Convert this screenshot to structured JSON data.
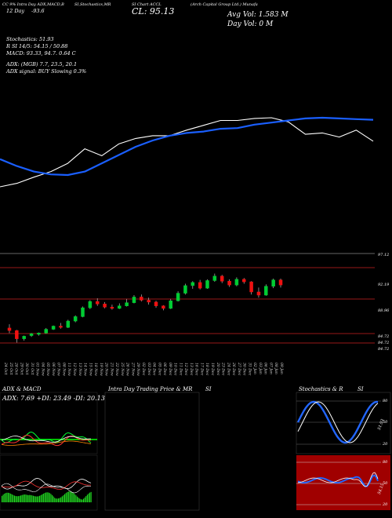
{
  "header": {
    "line1": "CC 9% Intra Day ADX,MACD,B",
    "line1b": "SI,Stochastics,MR",
    "line1c": "SI Chart ACCL",
    "line1d": "(Arch Capital Group Ltd.) Munafa",
    "line2a": "12 Day",
    "line2b": "-93.6",
    "cl": "CL: 95.13",
    "avg_vol": "Avg Vol: 1.583 M",
    "day_vol": "Day Vol: 0   M",
    "stoch": "Stochastics: 51.93",
    "rsi": "R            SI 14/5: 54.15 / 50.88",
    "macd": "MACD: 93.33, 94.7. 0.64 C",
    "adx": "ADX:                    (MGB) 7.7, 23.5, 20.1",
    "adx_signal": "ADX   signal:              BUY Slowing 0.3%"
  },
  "price_labels": [
    "97.12",
    "92.19",
    "88.96",
    "84.72",
    "84.72",
    "84.72"
  ],
  "date_labels": [
    "24 Oct",
    "25 Oct",
    "28 Oct",
    "29 Oct",
    "30 Oct",
    "31 Oct",
    "01 Nov",
    "04 Nov",
    "05 Nov",
    "06 Nov",
    "07 Nov",
    "08 Nov",
    "11 Nov",
    "12 Nov",
    "13 Nov",
    "14 Nov",
    "15 Nov",
    "18 Nov",
    "19 Nov",
    "20 Nov",
    "21 Nov",
    "22 Nov",
    "25 Nov",
    "26 Nov",
    "27 Nov",
    "29 Nov",
    "02 Dec",
    "03 Dec",
    "04 Dec",
    "05 Dec",
    "06 Dec",
    "09 Dec",
    "10 Dec",
    "11 Dec",
    "12 Dec",
    "13 Dec",
    "16 Dec",
    "17 Dec",
    "18 Dec",
    "19 Dec",
    "20 Dec",
    "23 Dec",
    "24 Dec",
    "26 Dec",
    "27 Dec",
    "30 Dec",
    "31 Dec",
    "02 Jan",
    "03 Jan",
    "06 Jan",
    "07 Jan",
    "08 Jan",
    "09 Jan"
  ],
  "panels": {
    "adx_title": "ADX  & MACD",
    "adx_values": "ADX: 7.69  +DI: 23.49  -DI: 20.13",
    "intra_title": "Intra Day Trading Price  & MR",
    "intra_si": "SI",
    "stoch_title": "Stochastics & R",
    "stoch_si": "SI",
    "stoch_scale": [
      "80",
      "50",
      "20"
    ],
    "rsi_scale": [
      "80",
      "50",
      "20"
    ],
    "stoch_val": "51.93",
    "rsi_val": "54.15"
  },
  "colors": {
    "background": "#000000",
    "price_line": "#ffffff",
    "ma_line": "#1a5fff",
    "up_candle": "#00cc33",
    "down_candle": "#ee1111",
    "support_line": "#cc2222",
    "rsi_band": "#aa0000"
  },
  "chart_data": {
    "type": "line",
    "title": "",
    "series": [
      {
        "name": "",
        "values": [
          0.0,
          0.05,
          0.14,
          0.22,
          0.34,
          0.55,
          0.45,
          0.62,
          0.7,
          0.74,
          0.74,
          0.82,
          0.89,
          0.96,
          0.96,
          0.99,
          1.0,
          0.94,
          0.76,
          0.78,
          0.72,
          0.82,
          0.66
        ]
      },
      {
        "name": "",
        "values": [
          0.4,
          0.3,
          0.22,
          0.18,
          0.17,
          0.22,
          0.34,
          0.46,
          0.58,
          0.67,
          0.74,
          0.78,
          0.8,
          0.84,
          0.85,
          0.9,
          0.93,
          0.96,
          0.99,
          1.0,
          0.99,
          0.98,
          0.97
        ]
      }
    ],
    "candles": [
      {
        "o": 86.6,
        "c": 86.2,
        "h": 87.2,
        "l": 85.8
      },
      {
        "o": 86.2,
        "c": 84.9,
        "h": 86.3,
        "l": 84.3
      },
      {
        "o": 84.9,
        "c": 85.3,
        "h": 85.4,
        "l": 84.6
      },
      {
        "o": 85.4,
        "c": 85.7,
        "h": 85.8,
        "l": 85.2
      },
      {
        "o": 85.6,
        "c": 85.8,
        "h": 85.9,
        "l": 85.4
      },
      {
        "o": 85.8,
        "c": 86.4,
        "h": 86.6,
        "l": 85.7
      },
      {
        "o": 86.4,
        "c": 86.9,
        "h": 87.0,
        "l": 86.3
      },
      {
        "o": 86.9,
        "c": 86.7,
        "h": 87.4,
        "l": 86.5
      },
      {
        "o": 86.7,
        "c": 87.7,
        "h": 87.9,
        "l": 86.6
      },
      {
        "o": 87.7,
        "c": 88.4,
        "h": 88.6,
        "l": 87.5
      },
      {
        "o": 88.4,
        "c": 89.8,
        "h": 90.0,
        "l": 88.3
      },
      {
        "o": 89.8,
        "c": 90.8,
        "h": 91.0,
        "l": 89.6
      },
      {
        "o": 90.8,
        "c": 90.4,
        "h": 91.3,
        "l": 90.1
      },
      {
        "o": 90.4,
        "c": 89.9,
        "h": 90.7,
        "l": 89.7
      },
      {
        "o": 89.9,
        "c": 89.7,
        "h": 90.3,
        "l": 89.5
      },
      {
        "o": 89.7,
        "c": 90.1,
        "h": 90.5,
        "l": 89.6
      },
      {
        "o": 90.1,
        "c": 90.6,
        "h": 91.2,
        "l": 90.0
      },
      {
        "o": 90.6,
        "c": 91.5,
        "h": 91.8,
        "l": 90.5
      },
      {
        "o": 91.5,
        "c": 91.0,
        "h": 91.9,
        "l": 90.8
      },
      {
        "o": 91.0,
        "c": 90.7,
        "h": 91.4,
        "l": 90.3
      },
      {
        "o": 90.7,
        "c": 90.1,
        "h": 90.9,
        "l": 89.8
      },
      {
        "o": 90.1,
        "c": 89.7,
        "h": 90.2,
        "l": 89.4
      },
      {
        "o": 89.7,
        "c": 90.9,
        "h": 91.2,
        "l": 89.6
      },
      {
        "o": 90.9,
        "c": 92.1,
        "h": 92.4,
        "l": 90.8
      },
      {
        "o": 92.1,
        "c": 93.3,
        "h": 93.6,
        "l": 91.9
      },
      {
        "o": 93.3,
        "c": 93.8,
        "h": 94.0,
        "l": 92.8
      },
      {
        "o": 93.8,
        "c": 92.9,
        "h": 94.2,
        "l": 92.7
      },
      {
        "o": 92.9,
        "c": 94.1,
        "h": 94.3,
        "l": 92.8
      },
      {
        "o": 94.1,
        "c": 94.8,
        "h": 95.2,
        "l": 93.9
      },
      {
        "o": 94.8,
        "c": 94.0,
        "h": 95.0,
        "l": 93.7
      },
      {
        "o": 94.0,
        "c": 93.4,
        "h": 94.3,
        "l": 93.1
      },
      {
        "o": 93.4,
        "c": 94.3,
        "h": 94.6,
        "l": 93.2
      },
      {
        "o": 94.3,
        "c": 93.9,
        "h": 94.5,
        "l": 93.6
      },
      {
        "o": 93.9,
        "c": 92.3,
        "h": 94.0,
        "l": 91.9
      },
      {
        "o": 92.3,
        "c": 91.8,
        "h": 93.0,
        "l": 91.4
      },
      {
        "o": 91.8,
        "c": 93.2,
        "h": 93.5,
        "l": 91.7
      },
      {
        "o": 93.2,
        "c": 94.2,
        "h": 94.4,
        "l": 92.9
      },
      {
        "o": 94.2,
        "c": 93.4,
        "h": 94.4,
        "l": 93.0
      }
    ],
    "ylim": [
      82.0,
      98.5
    ],
    "xlabel": "",
    "ylabel": ""
  }
}
